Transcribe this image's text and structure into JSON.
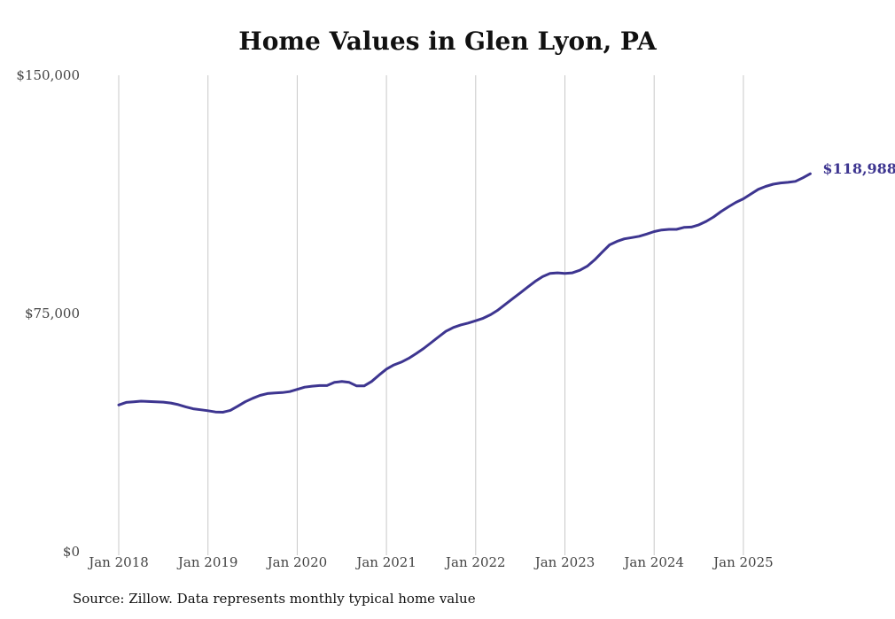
{
  "chart_data": {
    "type": "line",
    "title": "Home Values in Glen Lyon, PA",
    "xlabel": "",
    "ylabel": "",
    "ylim": [
      0,
      150000
    ],
    "y_ticks": [
      "$0",
      "$75,000",
      "$150,000"
    ],
    "y_tick_values": [
      0,
      75000,
      150000
    ],
    "x_ticks": [
      "Jan 2018",
      "Jan 2019",
      "Jan 2020",
      "Jan 2021",
      "Jan 2022",
      "Jan 2023",
      "Jan 2024",
      "Jan 2025"
    ],
    "grid": "vertical",
    "line_color": "#3d3590",
    "end_label": "$118,988",
    "series": [
      {
        "values": [
          46200,
          47000,
          47200,
          47400,
          47300,
          47200,
          47100,
          46800,
          46300,
          45600,
          45000,
          44700,
          44400,
          44000,
          43900,
          44500,
          45800,
          47200,
          48300,
          49200,
          49800,
          50000,
          50100,
          50400,
          51100,
          51800,
          52100,
          52300,
          52300,
          53300,
          53600,
          53300,
          52200,
          52200,
          53600,
          55600,
          57500,
          58800,
          59700,
          60900,
          62400,
          64000,
          65800,
          67600,
          69400,
          70600,
          71400,
          72000,
          72700,
          73500,
          74600,
          76100,
          77900,
          79700,
          81500,
          83300,
          85100,
          86600,
          87600,
          87800,
          87600,
          87800,
          88600,
          89900,
          91900,
          94300,
          96600,
          97700,
          98500,
          98900,
          99300,
          100000,
          100800,
          101300,
          101500,
          101500,
          102100,
          102200,
          102900,
          104000,
          105400,
          107100,
          108600,
          110000,
          111100,
          112600,
          114100,
          115000,
          115700,
          116100,
          116300,
          116600,
          117700,
          118988
        ]
      }
    ]
  },
  "source": "Source: Zillow. Data represents monthly typical home value"
}
